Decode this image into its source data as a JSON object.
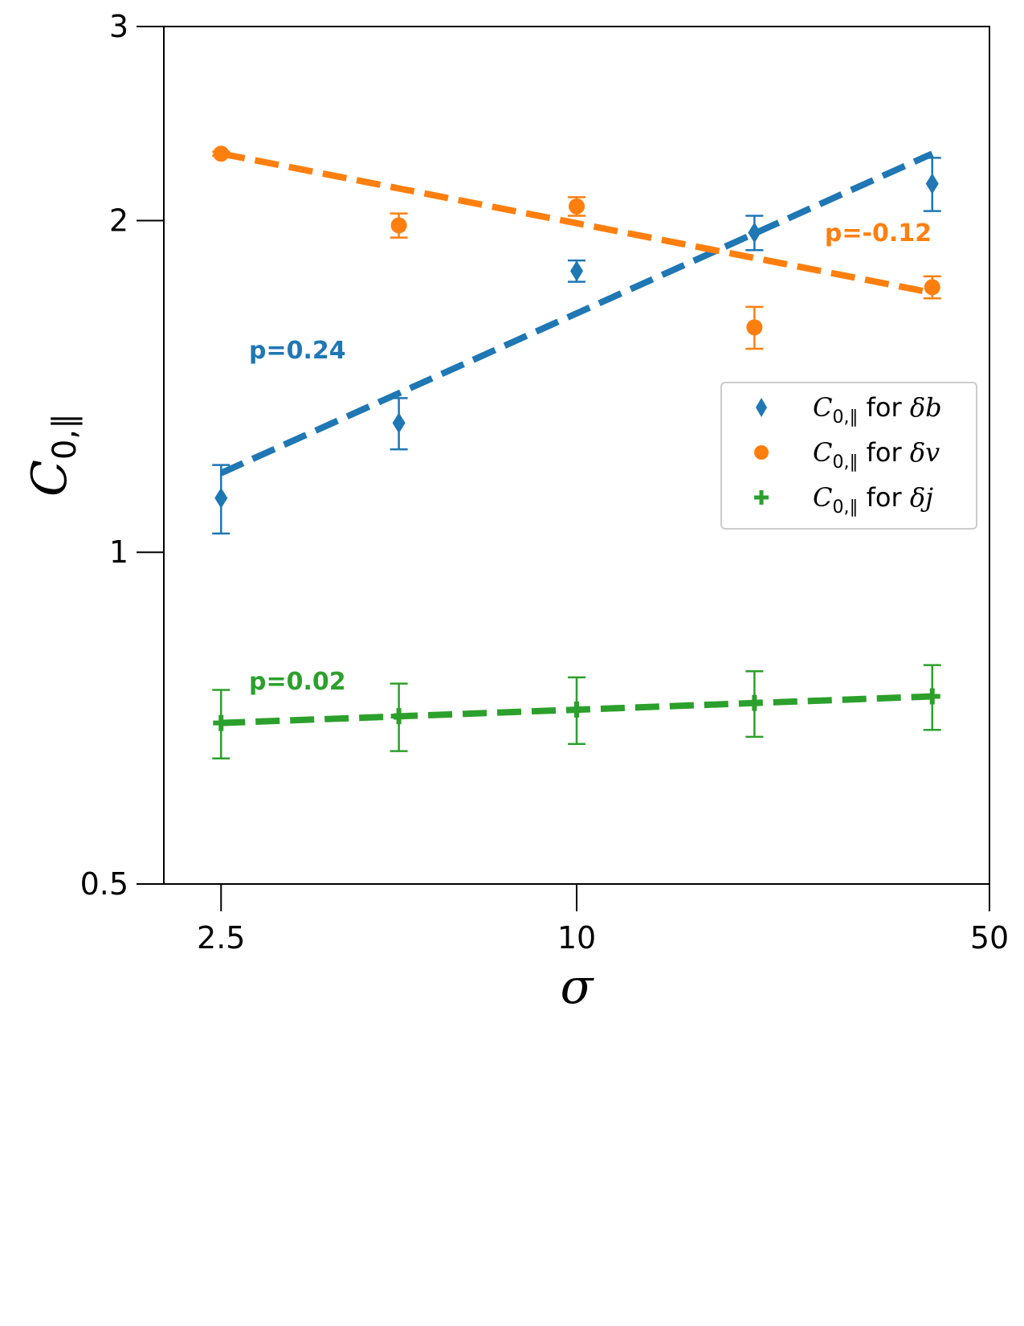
{
  "chart_data": {
    "type": "scatter",
    "title": "",
    "xlabel": "σ",
    "ylabel": "C0,∥",
    "xscale": "log",
    "yscale": "log",
    "xlim": [
      2.0,
      50
    ],
    "ylim": [
      0.5,
      3
    ],
    "xticks": [
      {
        "value": 2.5,
        "label": "2.5"
      },
      {
        "value": 10,
        "label": "10"
      },
      {
        "value": 50,
        "label": "50"
      }
    ],
    "yticks": [
      {
        "value": 0.5,
        "label": "0.5"
      },
      {
        "value": 1,
        "label": "1"
      },
      {
        "value": 2,
        "label": "2"
      },
      {
        "value": 3,
        "label": "3"
      }
    ],
    "x": [
      2.5,
      5,
      10,
      20,
      40
    ],
    "series": [
      {
        "name": "δb",
        "legend_prefix": "C",
        "legend_sub": "0,∥",
        "legend_mid": " for ",
        "legend_var": "δb",
        "marker": "diamond",
        "color": "#1f77b4",
        "values": [
          1.12,
          1.31,
          1.8,
          1.95,
          2.16
        ],
        "errors": [
          0.08,
          0.07,
          0.04,
          0.07,
          0.12
        ],
        "fit": {
          "start": 1.18,
          "end": 2.3
        },
        "annotation": "p=0.24"
      },
      {
        "name": "δv",
        "legend_prefix": "C",
        "legend_sub": "0,∥",
        "legend_mid": " for ",
        "legend_var": "δv",
        "marker": "circle",
        "color": "#ff7f0e",
        "values": [
          2.3,
          1.98,
          2.06,
          1.6,
          1.74
        ],
        "errors": [
          0.01,
          0.05,
          0.04,
          0.07,
          0.04
        ],
        "fit": {
          "start": 2.3,
          "end": 1.72
        },
        "annotation": "p=-0.12"
      },
      {
        "name": "δj",
        "legend_prefix": "C",
        "legend_sub": "0,∥",
        "legend_mid": " for ",
        "legend_var": "δj",
        "marker": "plus",
        "color": "#2ca02c",
        "values": [
          0.7,
          0.71,
          0.72,
          0.73,
          0.74
        ],
        "errors": [
          0.05,
          0.05,
          0.05,
          0.05,
          0.05
        ],
        "fit": {
          "start": 0.7,
          "end": 0.74
        },
        "annotation": "p=0.02"
      }
    ],
    "legend_position": "center-right"
  }
}
